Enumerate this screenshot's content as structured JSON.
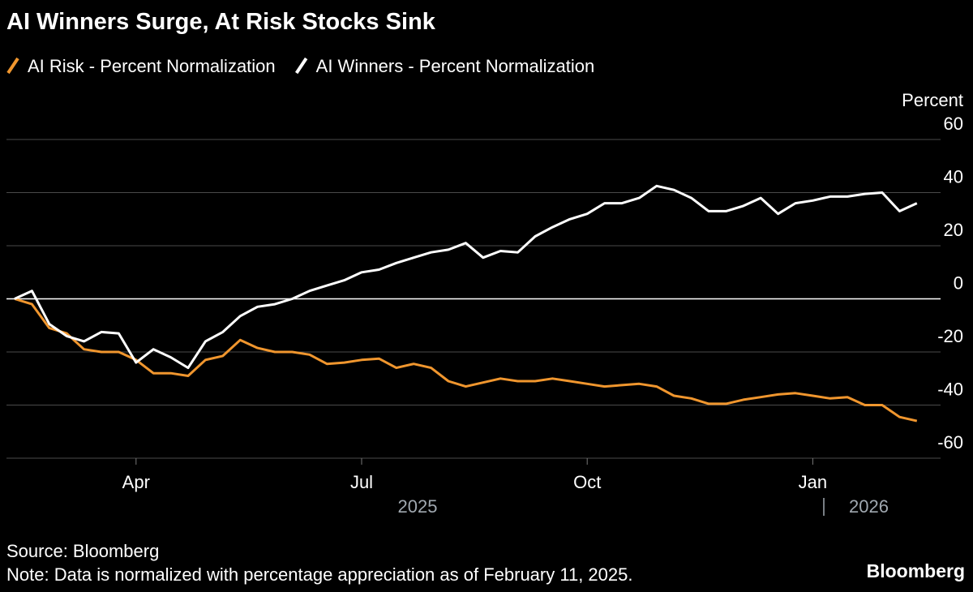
{
  "chart_data": {
    "type": "line",
    "title": "AI Winners Surge, At Risk Stocks Sink",
    "y_label": "Percent",
    "source": "Source: Bloomberg",
    "note": "Note: Data is normalized with percentage appreciation as of February 11, 2025.",
    "brand": "Bloomberg",
    "years": [
      "2025",
      "2026"
    ],
    "categories": [
      null,
      null,
      null,
      null,
      null,
      null,
      null,
      "Apr",
      null,
      null,
      null,
      null,
      null,
      null,
      null,
      null,
      null,
      null,
      null,
      null,
      "Jul",
      null,
      null,
      null,
      null,
      null,
      null,
      null,
      null,
      null,
      null,
      null,
      null,
      "Oct",
      null,
      null,
      null,
      null,
      null,
      null,
      null,
      null,
      null,
      null,
      null,
      null,
      "Jan",
      null,
      null,
      null,
      null,
      null,
      null
    ],
    "series": [
      {
        "name": "AI Risk - Percent Normalization",
        "color": "#f0962e",
        "values": [
          0,
          -2,
          -11,
          -13,
          -19,
          -20,
          -20,
          -23,
          -28,
          -28,
          -29,
          -23,
          -21.5,
          -15.5,
          -18.5,
          -20,
          -20,
          -21,
          -24.5,
          -24,
          -23,
          -22.5,
          -26,
          -24.5,
          -26,
          -31,
          -33,
          -31.5,
          -30,
          -31,
          -31,
          -30,
          -31,
          -32,
          -33,
          -32.5,
          -32,
          -33,
          -36.5,
          -37.5,
          -39.5,
          -39.5,
          -38,
          -37,
          -36,
          -35.5,
          -36.5,
          -37.5,
          -37,
          -40,
          -40,
          -44.5,
          -46
        ]
      },
      {
        "name": "AI Winners - Percent Normalization",
        "color": "#ffffff",
        "values": [
          0,
          3,
          -9.5,
          -14,
          -16,
          -12.5,
          -13,
          -24,
          -19,
          -22,
          -26,
          -16,
          -12.5,
          -6.5,
          -3,
          -2,
          0,
          3,
          5,
          7,
          10,
          11,
          13.5,
          15.5,
          17.5,
          18.5,
          21,
          15.5,
          18,
          17.5,
          23.5,
          27,
          30,
          32,
          36,
          36,
          38,
          42.5,
          41,
          38,
          33,
          33,
          35,
          38,
          32,
          36,
          37,
          38.5,
          38.5,
          39.5,
          40,
          33,
          36
        ]
      }
    ],
    "ylim": [
      -60,
      60
    ],
    "yticks": [
      -60,
      -40,
      -20,
      0,
      20,
      40,
      60
    ],
    "grid": true
  }
}
